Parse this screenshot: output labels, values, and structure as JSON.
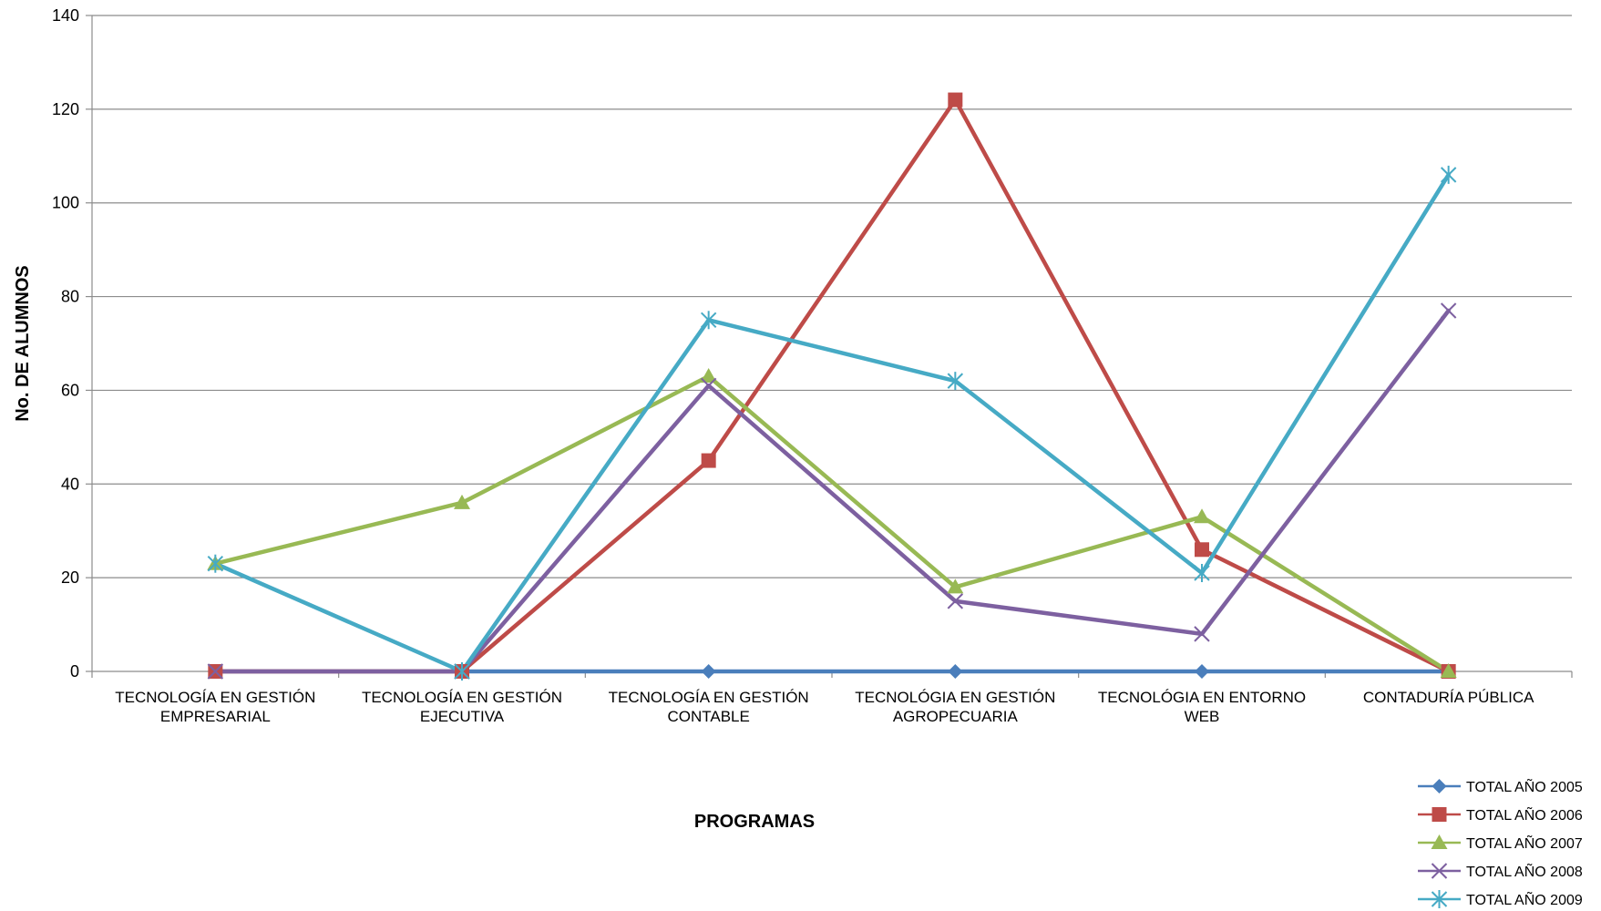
{
  "chart_data": {
    "type": "line",
    "title": "",
    "xlabel": "PROGRAMAS",
    "ylabel": "No. DE ALUMNOS",
    "ylim": [
      0,
      140
    ],
    "yticks": [
      0,
      20,
      40,
      60,
      80,
      100,
      120,
      140
    ],
    "grid": true,
    "legend_position": "bottom-right",
    "categories": [
      [
        "TECNOLOGÍA EN GESTIÓN",
        "EMPRESARIAL"
      ],
      [
        "TECNOLOGÍA EN GESTIÓN",
        "EJECUTIVA"
      ],
      [
        "TECNOLOGÍA EN GESTIÓN",
        "CONTABLE"
      ],
      [
        "TECNOLÓGIA EN GESTIÓN",
        "AGROPECUARIA"
      ],
      [
        "TECNOLÓGIA EN ENTORNO",
        "WEB"
      ],
      [
        "CONTADURÍA PÚBLICA"
      ]
    ],
    "series": [
      {
        "name": "TOTAL AÑO 2005",
        "color": "#4a7ebb",
        "marker": "diamond",
        "values": [
          0,
          0,
          0,
          0,
          0,
          0
        ]
      },
      {
        "name": "TOTAL AÑO 2006",
        "color": "#be4b48",
        "marker": "square",
        "values": [
          0,
          0,
          45,
          122,
          26,
          0
        ]
      },
      {
        "name": "TOTAL AÑO 2007",
        "color": "#98b954",
        "marker": "triangle",
        "values": [
          23,
          36,
          63,
          18,
          33,
          0
        ]
      },
      {
        "name": "TOTAL AÑO 2008",
        "color": "#7d60a0",
        "marker": "x",
        "values": [
          0,
          0,
          61,
          15,
          8,
          77
        ]
      },
      {
        "name": "TOTAL AÑO 2009",
        "color": "#46aac5",
        "marker": "star",
        "values": [
          23,
          0,
          75,
          62,
          21,
          106
        ]
      }
    ]
  }
}
